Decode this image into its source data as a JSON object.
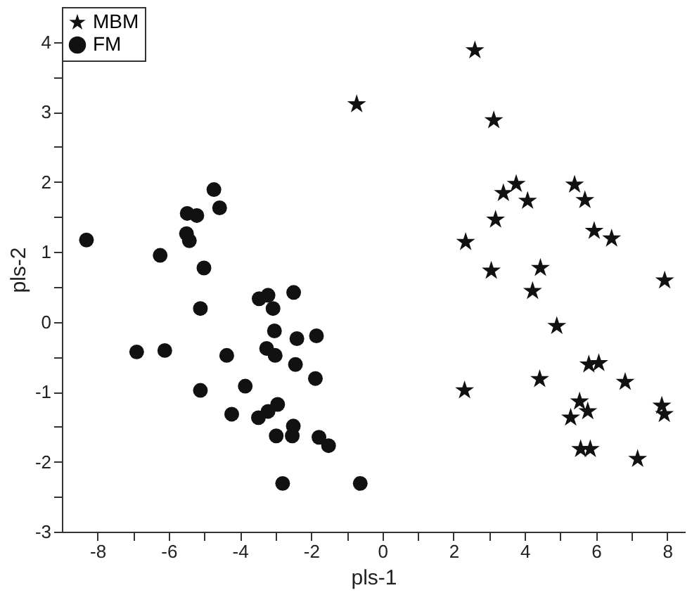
{
  "chart_data": {
    "type": "scatter",
    "xlabel": "pls-1",
    "ylabel": "pls-2",
    "xlim": [
      -9,
      8.5
    ],
    "ylim": [
      -3,
      4.5
    ],
    "xticks": [
      -8,
      {
        "value": -7,
        "label": null
      },
      -6,
      {
        "value": -5,
        "label": null
      },
      -4,
      {
        "value": -3,
        "label": null
      },
      -2,
      {
        "value": -1,
        "label": null
      },
      0,
      {
        "value": 1,
        "label": null
      },
      2,
      {
        "value": 3,
        "label": null
      },
      4,
      {
        "value": 5,
        "label": null
      },
      6,
      {
        "value": 7,
        "label": null
      },
      8
    ],
    "yticks": [
      -3,
      {
        "value": -2.5,
        "label": null
      },
      -2,
      {
        "value": -1.5,
        "label": null
      },
      -1,
      {
        "value": -0.5,
        "label": null
      },
      0,
      {
        "value": 0.5,
        "label": null
      },
      1,
      {
        "value": 1.5,
        "label": null
      },
      2,
      {
        "value": 2.5,
        "label": null
      },
      3,
      {
        "value": 3.5,
        "label": null
      },
      4
    ],
    "grid": false,
    "legend": "top left",
    "series": [
      {
        "name": "MBM",
        "color": "#111111",
        "marker": "star",
        "x": [
          -0.72,
          2.6,
          3.13,
          3.76,
          3.4,
          4.08,
          5.4,
          5.69,
          3.18,
          2.34,
          5.95,
          6.44,
          3.06,
          4.44,
          4.22,
          7.93,
          4.9,
          5.8,
          6.08,
          6.82,
          2.31,
          4.42,
          5.54,
          5.77,
          5.29,
          7.85,
          7.92,
          5.57,
          5.84,
          7.17
        ],
        "values": [
          3.11,
          3.88,
          2.88,
          1.97,
          1.84,
          1.73,
          1.96,
          1.74,
          1.46,
          1.14,
          1.3,
          1.19,
          0.73,
          0.77,
          0.44,
          0.59,
          -0.06,
          -0.61,
          -0.59,
          -0.86,
          -0.98,
          -0.82,
          -1.14,
          -1.28,
          -1.37,
          -1.2,
          -1.32,
          -1.82,
          -1.82,
          -1.96
        ]
      },
      {
        "name": "FM",
        "color": "#111111",
        "marker": "circle",
        "x": [
          -8.31,
          -6.24,
          -5.48,
          -5.21,
          -5.5,
          -5.42,
          -4.73,
          -4.57,
          -5.01,
          -5.11,
          -6.9,
          -6.11,
          -4.37,
          -5.11,
          -3.85,
          -4.23,
          -3.46,
          -3.21,
          -3.07,
          -2.49,
          -3.03,
          -2.4,
          -1.85,
          -3.25,
          -3.01,
          -2.44,
          -1.88,
          -3.48,
          -3.21,
          -2.94,
          -2.5,
          -2.98,
          -2.53,
          -1.78,
          -1.51,
          -2.8,
          -0.62
        ],
        "values": [
          1.17,
          0.95,
          1.55,
          1.52,
          1.26,
          1.16,
          1.89,
          1.63,
          0.77,
          0.19,
          -0.43,
          -0.41,
          -0.48,
          -0.98,
          -0.92,
          -1.32,
          0.33,
          0.38,
          0.19,
          0.42,
          -0.13,
          -0.24,
          -0.2,
          -0.38,
          -0.48,
          -0.61,
          -0.81,
          -1.37,
          -1.28,
          -1.18,
          -1.49,
          -1.63,
          -1.63,
          -1.65,
          -1.77,
          -2.31,
          -2.31
        ]
      }
    ]
  }
}
